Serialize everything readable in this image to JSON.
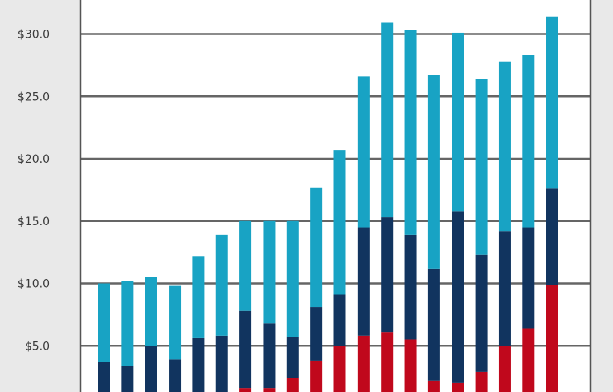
{
  "chart_data": {
    "type": "bar",
    "stacked": true,
    "categories": [
      "",
      "",
      "",
      "",
      "",
      "",
      "",
      "",
      "",
      "",
      "",
      "",
      "",
      "",
      "",
      "",
      "",
      "",
      "",
      "",
      ""
    ],
    "series": [
      {
        "color": "#c0081c",
        "values": [
          0,
          0,
          0,
          0,
          0.4,
          1.0,
          1.6,
          1.6,
          2.4,
          3.8,
          5.0,
          5.8,
          6.1,
          5.5,
          2.2,
          2.0,
          2.9,
          5.0,
          6.4,
          9.9,
          0
        ]
      },
      {
        "color": "#11345f",
        "values": [
          3.7,
          3.4,
          5.0,
          3.9,
          5.2,
          4.8,
          6.2,
          5.2,
          3.3,
          4.3,
          4.1,
          8.7,
          9.2,
          8.4,
          9.0,
          13.8,
          9.4,
          9.2,
          8.1,
          7.7,
          0
        ]
      },
      {
        "color": "#18a3c4",
        "values": [
          6.3,
          6.8,
          5.5,
          5.9,
          6.6,
          8.1,
          7.2,
          8.2,
          9.3,
          9.6,
          11.6,
          12.1,
          15.6,
          16.4,
          15.5,
          14.3,
          14.1,
          13.6,
          13.8,
          13.8,
          0
        ]
      }
    ],
    "y_tick_labels": [
      "$5.0",
      "$10.0",
      "$15.0",
      "$20.0",
      "$25.0",
      "$30.0"
    ],
    "y_tick_values": [
      5,
      10,
      15,
      20,
      25,
      30
    ],
    "ylim": [
      0,
      31.5
    ],
    "grid": true,
    "legend": "none",
    "colors": {
      "background": "#e9e9e9",
      "plot_background": "#ffffff",
      "gridline": "#555555",
      "frame": "#555555"
    }
  }
}
